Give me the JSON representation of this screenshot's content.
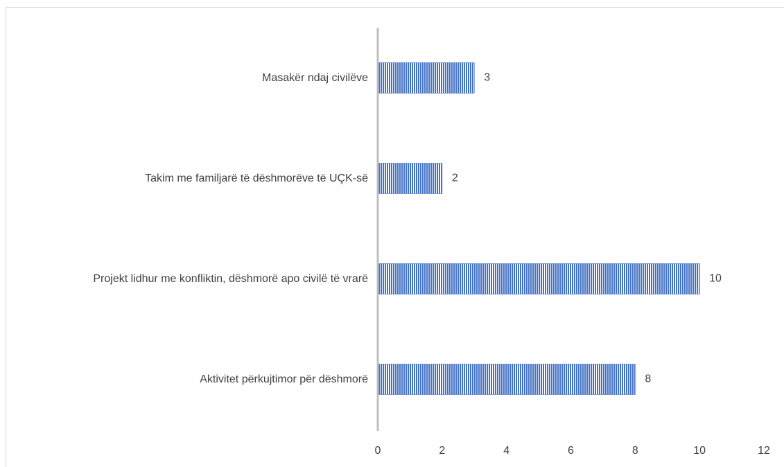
{
  "chart_data": {
    "type": "bar",
    "orientation": "horizontal",
    "categories": [
      "Masakër ndaj civilëve",
      "Takim me familjarë të dëshmorëve të UÇK-së",
      "Projekt lidhur me konfliktin, dëshmorë apo civilë të vrarë",
      "Aktivitet përkujtimor për dëshmorë"
    ],
    "values": [
      3,
      2,
      10,
      8
    ],
    "color": "#4472c4",
    "xlim": [
      0,
      12
    ],
    "xticks": [
      0,
      2,
      4,
      6,
      8,
      10,
      12
    ],
    "grid": false
  }
}
